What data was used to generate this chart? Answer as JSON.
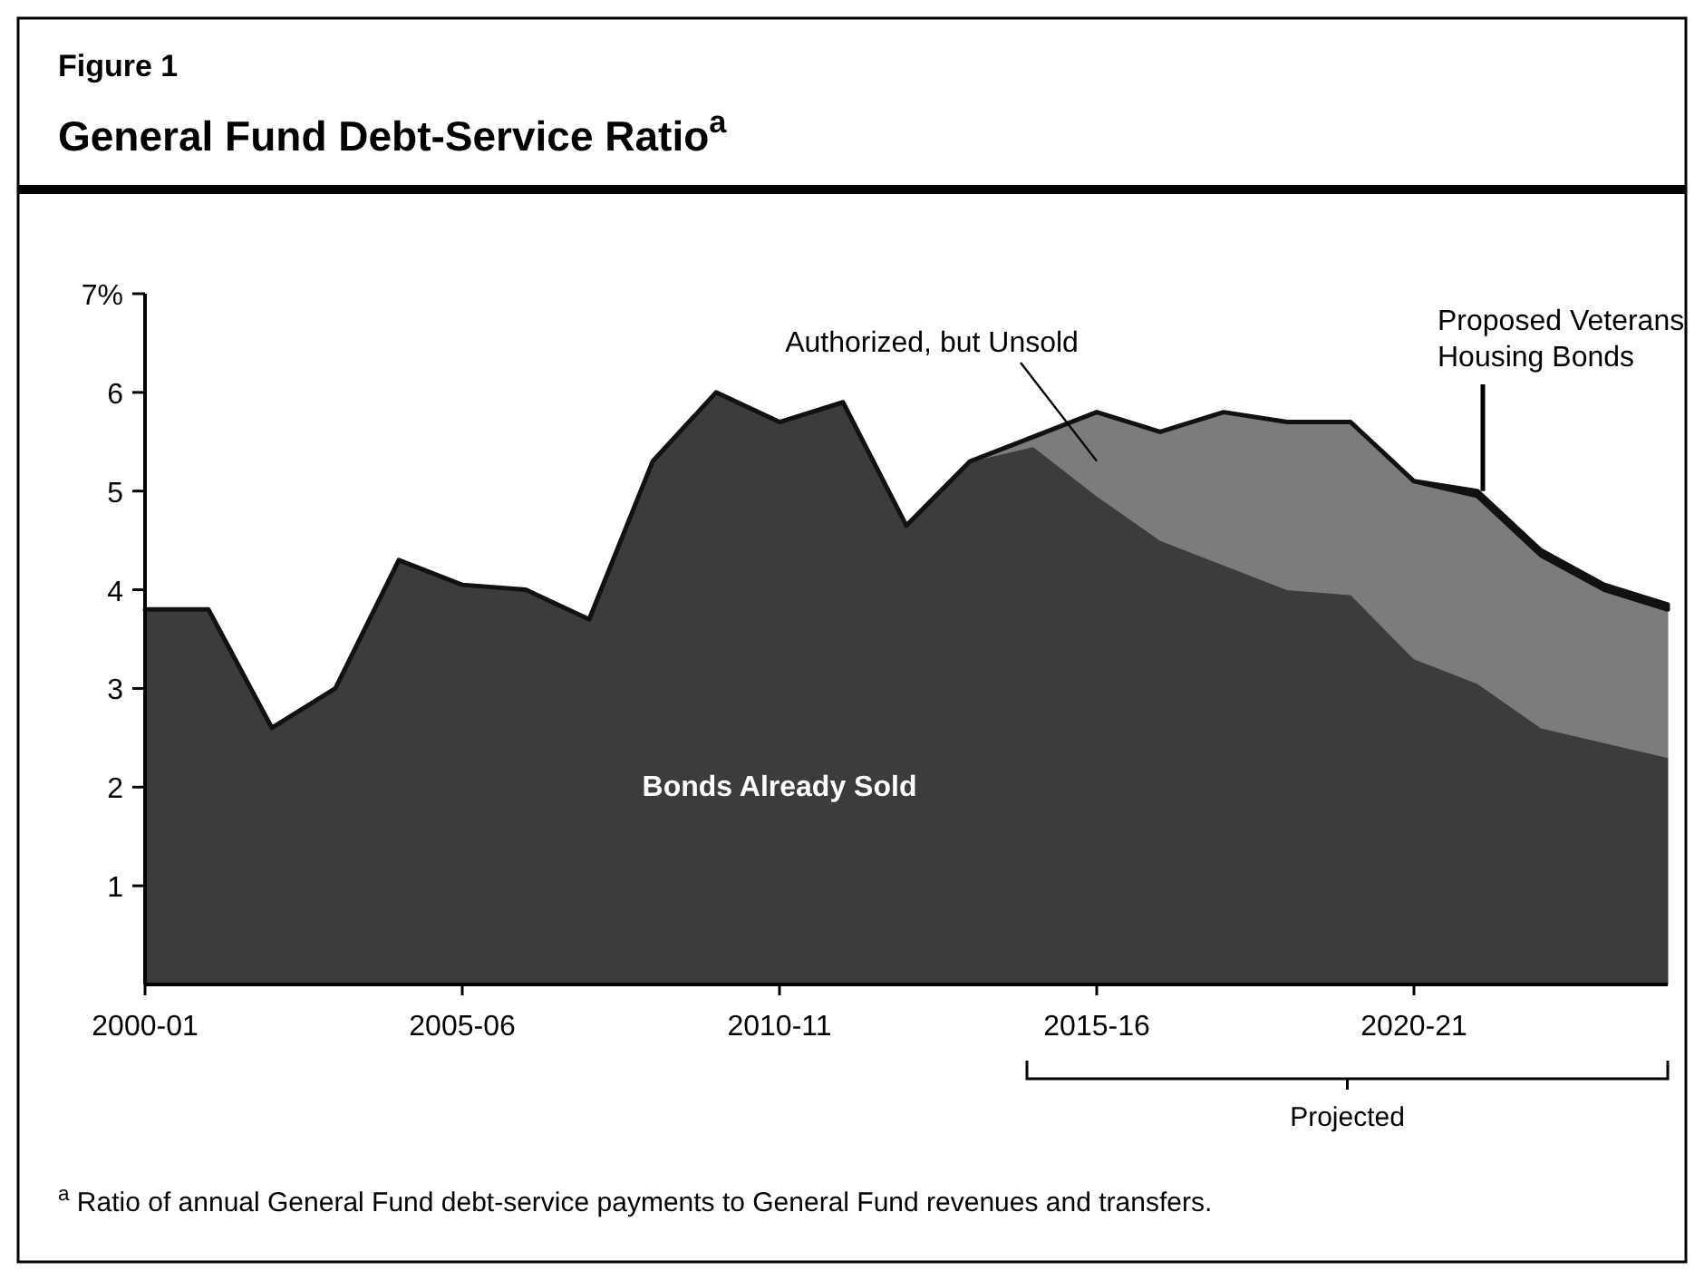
{
  "chart_data": {
    "type": "area",
    "stacked": true,
    "subtitle": "Figure 1",
    "title": "General Fund Debt-Service Ratio$^{a}$",
    "categories": [
      "2000-01",
      null,
      null,
      null,
      null,
      "2005-06",
      null,
      null,
      null,
      null,
      "2010-11",
      null,
      null,
      null,
      null,
      "2015-16",
      null,
      null,
      null,
      null,
      "2020-21",
      null,
      null,
      null,
      null
    ],
    "series": [
      {
        "name": "Bonds Already Sold",
        "color": "#3c3c3c",
        "values": [
          3.8,
          3.8,
          2.6,
          3.0,
          4.3,
          4.05,
          4.0,
          3.7,
          5.3,
          6.0,
          5.7,
          5.9,
          4.65,
          5.3,
          5.45,
          4.95,
          4.5,
          4.25,
          4.0,
          3.95,
          3.3,
          3.05,
          2.6,
          2.45,
          2.3
        ]
      },
      {
        "name": "Authorized, but Unsold",
        "color": "#7c7c7c",
        "values": [
          0,
          0,
          0,
          0,
          0,
          0,
          0,
          0,
          0,
          0,
          0,
          0,
          0,
          0,
          0.1,
          0.85,
          1.1,
          1.55,
          1.7,
          1.75,
          1.8,
          1.9,
          1.75,
          1.55,
          1.5
        ]
      },
      {
        "name": "Proposed Veterans Housing Bonds",
        "color": "#111111",
        "values": [
          0,
          0,
          0,
          0,
          0,
          0,
          0,
          0,
          0,
          0,
          0,
          0,
          0,
          0,
          0,
          0,
          0,
          0,
          0,
          0,
          0,
          0.05,
          0.05,
          0.05,
          0.05
        ]
      }
    ],
    "ylim": [
      0,
      7
    ],
    "yticks": [
      1,
      2,
      3,
      4,
      5,
      6,
      {
        "value": 7,
        "label": "7%"
      }
    ],
    "grid": false,
    "legend": false,
    "annotations": [
      "Projected",
      "$^{a}$ Ratio of annual General Fund debt-service payments to General Fund revenues and transfers."
    ]
  }
}
